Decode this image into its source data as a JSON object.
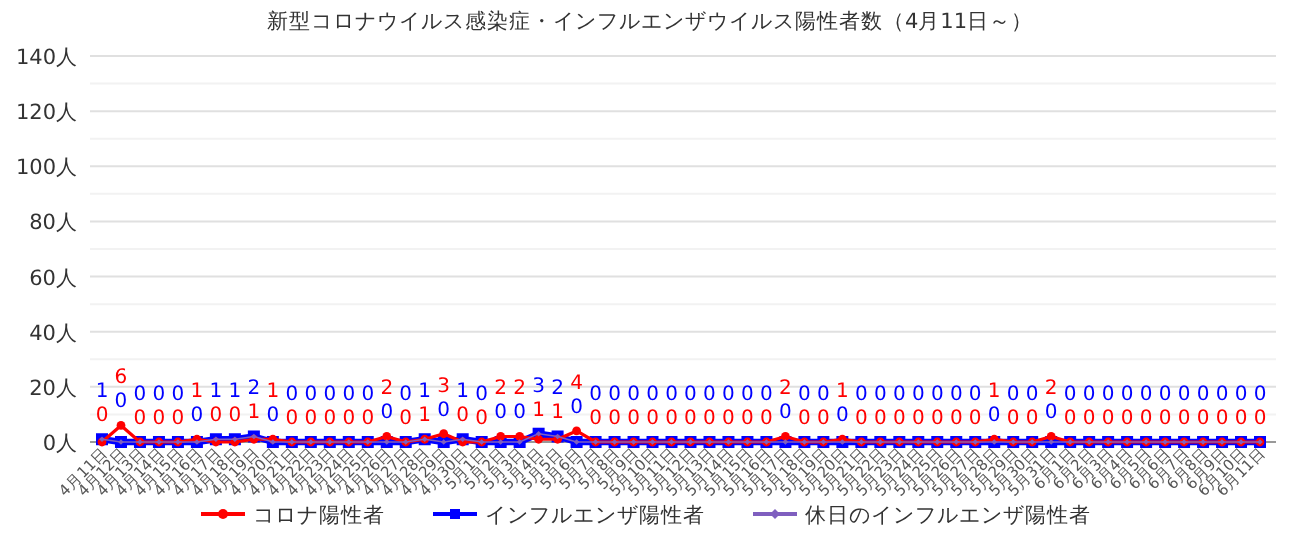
{
  "chart_data": {
    "type": "line",
    "title": "新型コロナウイルス感染症・インフルエンザウイルス陽性者数（4月11日～）",
    "categories": [
      "4月11日",
      "4月12日",
      "4月13日",
      "4月14日",
      "4月15日",
      "4月16日",
      "4月17日",
      "4月18日",
      "4月19日",
      "4月20日",
      "4月21日",
      "4月22日",
      "4月23日",
      "4月24日",
      "4月25日",
      "4月26日",
      "4月27日",
      "4月28日",
      "4月29日",
      "4月30日",
      "5月1日",
      "5月2日",
      "5月3日",
      "5月4日",
      "5月5日",
      "5月6日",
      "5月7日",
      "5月8日",
      "5月9日",
      "5月10日",
      "5月11日",
      "5月12日",
      "5月13日",
      "5月14日",
      "5月15日",
      "5月16日",
      "5月17日",
      "5月18日",
      "5月19日",
      "5月20日",
      "5月21日",
      "5月22日",
      "5月23日",
      "5月24日",
      "5月25日",
      "5月26日",
      "5月27日",
      "5月28日",
      "5月29日",
      "5月30日",
      "5月31日",
      "6月1日",
      "6月2日",
      "6月3日",
      "6月4日",
      "6月5日",
      "6月6日",
      "6月7日",
      "6月8日",
      "6月9日",
      "6月10日",
      "6月11日"
    ],
    "series": [
      {
        "name": "コロナ陽性者",
        "color": "#ff0000",
        "marker": "circle",
        "values": [
          0,
          6,
          0,
          0,
          0,
          1,
          0,
          0,
          1,
          1,
          0,
          0,
          0,
          0,
          0,
          2,
          0,
          1,
          3,
          0,
          0,
          2,
          2,
          1,
          1,
          4,
          0,
          0,
          0,
          0,
          0,
          0,
          0,
          0,
          0,
          0,
          2,
          0,
          0,
          1,
          0,
          0,
          0,
          0,
          0,
          0,
          0,
          1,
          0,
          0,
          2,
          0,
          0,
          0,
          0,
          0,
          0,
          0,
          0,
          0,
          0,
          0
        ],
        "value_labels": [
          "0",
          "6",
          "0",
          "0",
          "0",
          "1",
          "0",
          "0",
          "1",
          "1",
          "0",
          "0",
          "0",
          "0",
          "0",
          "2",
          "0",
          "1",
          "3",
          "0",
          "0",
          "2",
          "2",
          "1",
          "1",
          "4",
          "0",
          "0",
          "0",
          "0",
          "0",
          "0",
          "0",
          "0",
          "0",
          "0",
          "2",
          "0",
          "0",
          "1",
          "0",
          "0",
          "0",
          "0",
          "0",
          "0",
          "0",
          "1",
          "0",
          "0",
          "2",
          "0",
          "0",
          "0",
          "0",
          "0",
          "0",
          "0",
          "0",
          "0",
          "0",
          "0"
        ]
      },
      {
        "name": "インフルエンザ陽性者",
        "color": "#0000ff",
        "marker": "square",
        "values": [
          1,
          0,
          0,
          0,
          0,
          0,
          1,
          1,
          2,
          0,
          0,
          0,
          0,
          0,
          0,
          0,
          0,
          1,
          0,
          1,
          0,
          0,
          0,
          3,
          2,
          0,
          0,
          0,
          0,
          0,
          0,
          0,
          0,
          0,
          0,
          0,
          0,
          0,
          0,
          0,
          0,
          0,
          0,
          0,
          0,
          0,
          0,
          0,
          0,
          0,
          0,
          0,
          0,
          0,
          0,
          0,
          0,
          0,
          0,
          0,
          0,
          0
        ],
        "value_labels": [
          "1",
          "0",
          "0",
          "0",
          "0",
          "0",
          "1",
          "1",
          "2",
          "0",
          "0",
          "0",
          "0",
          "0",
          "0",
          "0",
          "0",
          "1",
          "0",
          "1",
          "0",
          "0",
          "0",
          "3",
          "2",
          "0",
          "0",
          "0",
          "0",
          "0",
          "0",
          "0",
          "0",
          "0",
          "0",
          "0",
          "0",
          "0",
          "0",
          "0",
          "0",
          "0",
          "0",
          "0",
          "0",
          "0",
          "0",
          "0",
          "0",
          "0",
          "0",
          "0",
          "0",
          "0",
          "0",
          "0",
          "0",
          "0",
          "0",
          "0",
          "0",
          "0"
        ]
      },
      {
        "name": "休日のインフルエンザ陽性者",
        "color": "#7f5fbf",
        "marker": "diamond",
        "values": [
          1,
          0,
          0,
          0,
          0,
          0,
          1,
          1,
          2,
          0,
          0,
          0,
          0,
          0,
          0,
          0,
          0,
          1,
          0,
          1,
          0,
          0,
          0,
          3,
          2,
          0,
          0,
          0,
          0,
          0,
          0,
          0,
          0,
          0,
          0,
          0,
          0,
          0,
          0,
          0,
          0,
          0,
          0,
          0,
          0,
          0,
          0,
          0,
          0,
          0,
          0,
          0,
          0,
          0,
          0,
          0,
          0,
          0,
          0,
          0,
          0,
          0
        ]
      }
    ],
    "ylim": [
      0,
      140
    ],
    "yticks": [
      {
        "value": 0,
        "label": "0人"
      },
      {
        "value": 10,
        "label": null
      },
      {
        "value": 20,
        "label": "20人"
      },
      {
        "value": 30,
        "label": null
      },
      {
        "value": 40,
        "label": "40人"
      },
      {
        "value": 50,
        "label": null
      },
      {
        "value": 60,
        "label": "60人"
      },
      {
        "value": 70,
        "label": null
      },
      {
        "value": 80,
        "label": "80人"
      },
      {
        "value": 90,
        "label": null
      },
      {
        "value": 100,
        "label": "100人"
      },
      {
        "value": 110,
        "label": null
      },
      {
        "value": 120,
        "label": "120人"
      },
      {
        "value": 130,
        "label": null
      },
      {
        "value": 140,
        "label": "140人"
      }
    ],
    "grid": "y",
    "legend": "bottom",
    "line_style": "solid"
  }
}
